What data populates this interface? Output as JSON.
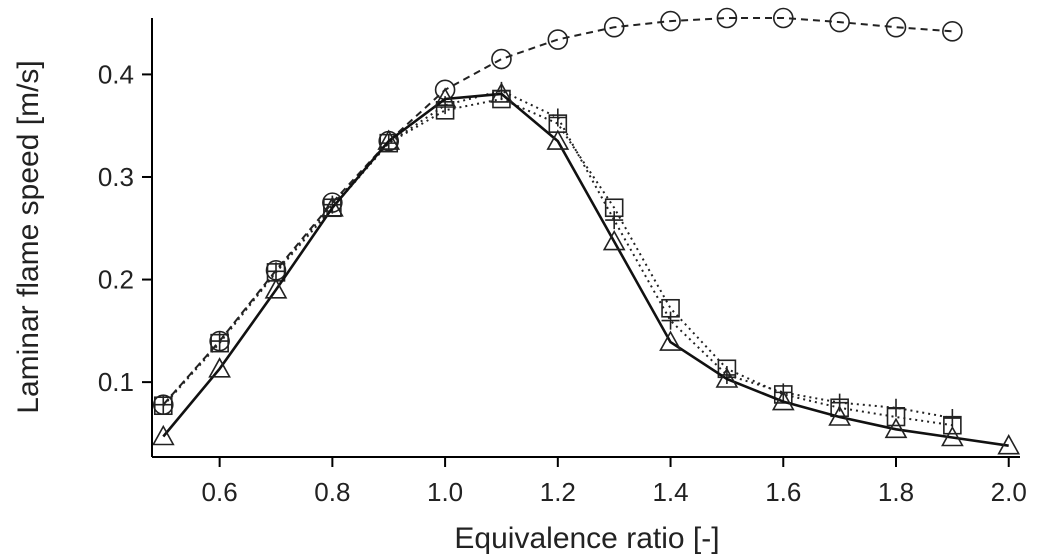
{
  "chart_data": {
    "type": "line",
    "title": "",
    "xlabel": "Equivalence ratio [-]",
    "ylabel": "Laminar flame speed [m/s]",
    "xlim": [
      0.48,
      2.02
    ],
    "ylim": [
      0.027,
      0.455
    ],
    "xticks": [
      0.6,
      0.8,
      1.0,
      1.2,
      1.4,
      1.6,
      1.8,
      2.0
    ],
    "xtick_labels": [
      "0.6",
      "0.8",
      "1.0",
      "1.2",
      "1.4",
      "1.6",
      "1.8",
      "2.0"
    ],
    "yticks": [
      0.1,
      0.2,
      0.3,
      0.4
    ],
    "ytick_labels": [
      "0.1",
      "0.2",
      "0.3",
      "0.4"
    ],
    "grid": false,
    "series": [
      {
        "marker": "circle",
        "line_style": "dashed",
        "color": "#222222",
        "x": [
          0.5,
          0.6,
          0.7,
          0.8,
          0.9,
          1.0,
          1.1,
          1.2,
          1.3,
          1.4,
          1.5,
          1.6,
          1.7,
          1.8,
          1.9
        ],
        "y": [
          0.078,
          0.14,
          0.209,
          0.275,
          0.335,
          0.385,
          0.415,
          0.434,
          0.446,
          0.452,
          0.455,
          0.455,
          0.451,
          0.446,
          0.442
        ]
      },
      {
        "marker": "plus",
        "line_style": "dotted",
        "color": "#222222",
        "x": [
          0.5,
          0.6,
          0.7,
          0.8,
          0.9,
          1.0,
          1.1,
          1.2,
          1.3,
          1.4,
          1.5,
          1.6,
          1.7,
          1.8,
          1.9
        ],
        "y": [
          0.078,
          0.14,
          0.208,
          0.273,
          0.333,
          0.37,
          0.384,
          0.358,
          0.258,
          0.16,
          0.107,
          0.09,
          0.08,
          0.075,
          0.065
        ]
      },
      {
        "marker": "square",
        "line_style": "dotted",
        "color": "#222222",
        "x": [
          0.5,
          0.6,
          0.7,
          0.8,
          0.9,
          1.0,
          1.1,
          1.2,
          1.3,
          1.4,
          1.5,
          1.6,
          1.7,
          1.8,
          1.9
        ],
        "y": [
          0.077,
          0.138,
          0.207,
          0.27,
          0.333,
          0.365,
          0.376,
          0.352,
          0.27,
          0.172,
          0.113,
          0.088,
          0.075,
          0.066,
          0.058
        ]
      },
      {
        "marker": "triangle",
        "line_style": "solid",
        "color": "#111111",
        "x": [
          0.5,
          0.6,
          0.7,
          0.8,
          0.9,
          1.0,
          1.1,
          1.2,
          1.3,
          1.4,
          1.5,
          1.6,
          1.7,
          1.8,
          1.9,
          2.0
        ],
        "y": [
          0.047,
          0.113,
          0.19,
          0.27,
          0.335,
          0.376,
          0.381,
          0.335,
          0.237,
          0.139,
          0.103,
          0.081,
          0.066,
          0.054,
          0.046,
          0.038
        ]
      }
    ]
  }
}
